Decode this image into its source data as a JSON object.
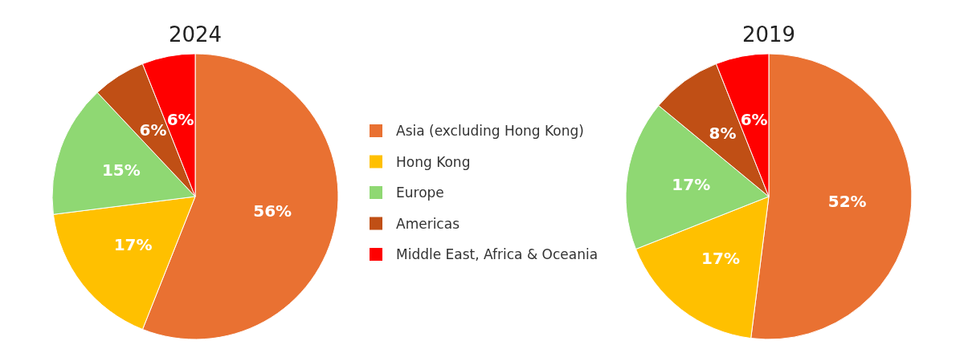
{
  "chart_data": [
    {
      "type": "pie",
      "title": "2024",
      "categories": [
        "Asia (excluding Hong Kong)",
        "Hong Kong",
        "Europe",
        "Americas",
        "Middle East, Africa & Oceania"
      ],
      "values": [
        56,
        17,
        15,
        6,
        6
      ],
      "value_labels": [
        "56%",
        "17%",
        "15%",
        "6%",
        "6%"
      ],
      "colors": [
        "#e97132",
        "#ffc000",
        "#8fd873",
        "#c04f15",
        "#ff0000"
      ],
      "legend": "right"
    },
    {
      "type": "pie",
      "title": "2019",
      "categories": [
        null,
        null,
        null,
        null,
        null
      ],
      "values": [
        52,
        17,
        17,
        8,
        6
      ],
      "value_labels": [
        "52%",
        "17%",
        "17%",
        "8%",
        "6%"
      ],
      "colors": [
        "#e97132",
        "#ffc000",
        "#8fd873",
        "#c04f15",
        "#ff0000"
      ]
    }
  ]
}
